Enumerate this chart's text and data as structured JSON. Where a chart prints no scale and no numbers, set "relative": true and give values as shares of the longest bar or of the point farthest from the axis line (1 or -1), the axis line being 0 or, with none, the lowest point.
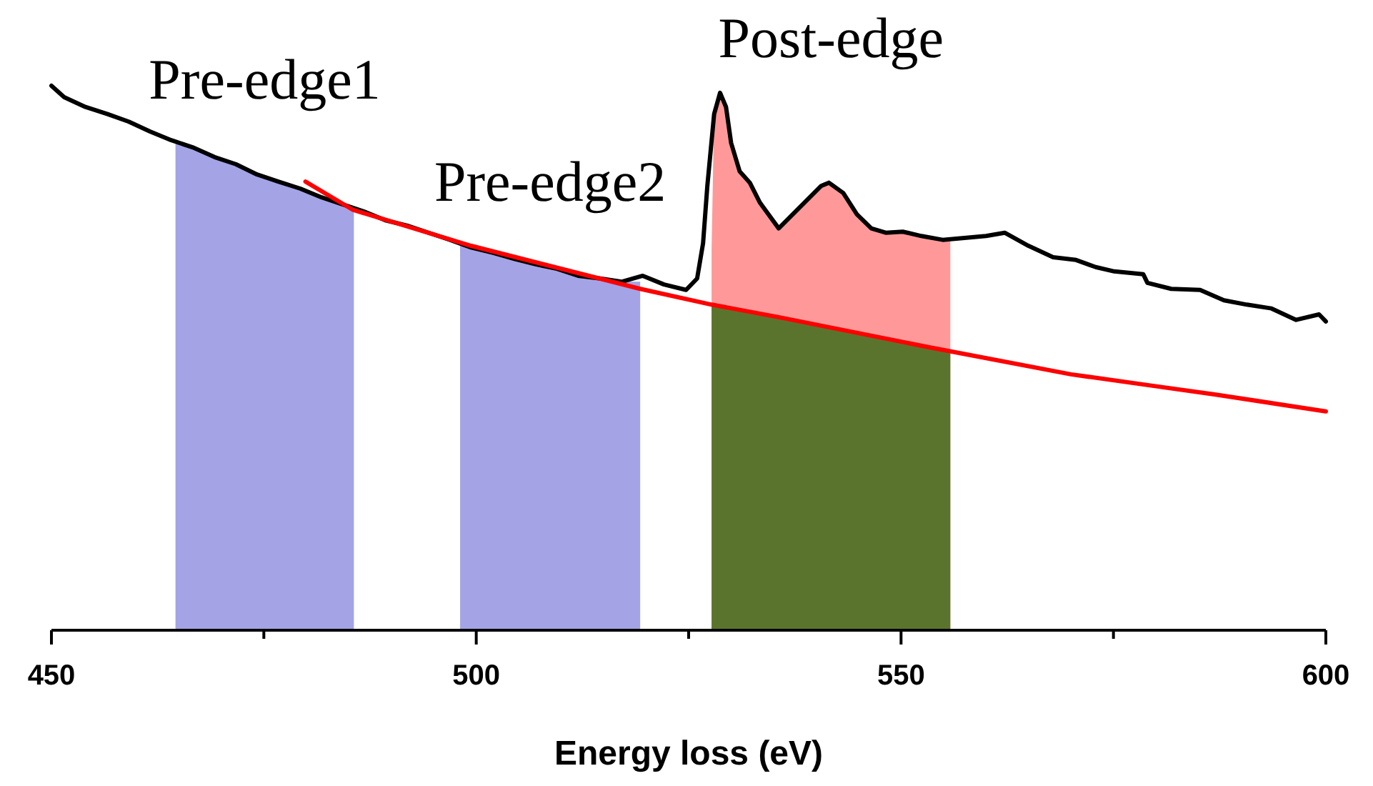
{
  "chart_data": {
    "type": "line",
    "relative": true,
    "xlabel": "Energy loss (eV)",
    "xlim": [
      450,
      600
    ],
    "xticks": [
      450,
      {
        "value": 475,
        "label": null
      },
      500,
      {
        "value": 525,
        "label": null
      },
      550,
      {
        "value": 575,
        "label": null
      },
      600
    ],
    "grid": false,
    "marker": "none",
    "line_style": "solid",
    "series": [
      {
        "type": "area",
        "name": "Pre-edge1",
        "color": "#a3a3e6",
        "x": [
          464.6,
          466.6,
          469.2,
          471.7,
          474.2,
          476.7,
          479.3,
          481.8,
          484.3,
          485.6
        ],
        "values": [
          0.897,
          0.887,
          0.869,
          0.856,
          0.837,
          0.824,
          0.811,
          0.795,
          0.782,
          0.775
        ]
      },
      {
        "type": "area",
        "name": "Pre-edge2",
        "color": "#a3a3e6",
        "x": [
          498.1,
          499.4,
          502,
          504.5,
          507,
          509.5,
          512,
          514.6,
          517.1,
          519.3
        ],
        "values": [
          0.71,
          0.703,
          0.693,
          0.682,
          0.672,
          0.664,
          0.651,
          0.646,
          0.64,
          0.64
        ]
      },
      {
        "type": "area",
        "name": "Post-edge",
        "color": "#ff9999",
        "x": [
          527.7,
          528,
          528.7,
          529.4,
          530,
          531,
          532.2,
          533.4,
          535.6,
          538.1,
          540.6,
          541.5,
          543.2,
          544.8,
          546.5,
          548.2,
          550.2,
          552.4,
          554.9,
          555.8
        ],
        "values": [
          0.7,
          0.948,
          0.987,
          0.961,
          0.895,
          0.843,
          0.822,
          0.785,
          0.738,
          0.777,
          0.816,
          0.822,
          0.803,
          0.764,
          0.738,
          0.73,
          0.732,
          0.724,
          0.717,
          0.717
        ]
      },
      {
        "type": "area",
        "color": "#5b742d",
        "x": [
          527.7,
          535.6,
          553.2,
          555.8
        ],
        "values": [
          0.598,
          0.575,
          0.52,
          0.513
        ]
      },
      {
        "color": "#000000",
        "x": [
          450,
          451.5,
          454,
          456.6,
          459.1,
          461.6,
          464.1,
          466.6,
          469.2,
          471.7,
          474.2,
          476.7,
          479.3,
          481.8,
          484.3,
          486.8,
          489.3,
          491.9,
          494.4,
          496.9,
          499.4,
          502,
          504.5,
          507,
          509.5,
          512,
          514.6,
          517.1,
          519.6,
          522.1,
          524.7,
          526,
          526.7,
          527.2,
          528,
          528.7,
          529.4,
          530,
          531,
          532.2,
          533.4,
          535.6,
          538.1,
          540.6,
          541.5,
          543.2,
          544.8,
          546.5,
          548.2,
          550.2,
          552.4,
          554.9,
          560,
          562.2,
          565,
          567.9,
          570.6,
          572.9,
          575.1,
          578.5,
          579,
          581.8,
          585.2,
          588,
          590.7,
          593.6,
          596.5,
          599.2,
          600
        ],
        "values": [
          1.0,
          0.979,
          0.961,
          0.948,
          0.934,
          0.916,
          0.9,
          0.887,
          0.869,
          0.856,
          0.837,
          0.824,
          0.811,
          0.795,
          0.782,
          0.769,
          0.753,
          0.743,
          0.73,
          0.717,
          0.703,
          0.693,
          0.682,
          0.672,
          0.664,
          0.651,
          0.646,
          0.64,
          0.651,
          0.635,
          0.625,
          0.646,
          0.711,
          0.816,
          0.948,
          0.987,
          0.961,
          0.895,
          0.843,
          0.822,
          0.785,
          0.738,
          0.777,
          0.816,
          0.822,
          0.803,
          0.764,
          0.738,
          0.73,
          0.732,
          0.724,
          0.717,
          0.724,
          0.73,
          0.706,
          0.685,
          0.68,
          0.667,
          0.659,
          0.654,
          0.638,
          0.627,
          0.625,
          0.606,
          0.598,
          0.591,
          0.57,
          0.58,
          0.567
        ]
      },
      {
        "color": "#ff0000",
        "x": [
          479.9,
          485.5,
          499.4,
          519.3,
          527.7,
          535.6,
          553.2,
          570,
          579.6,
          586.9,
          600
        ],
        "values": [
          0.824,
          0.772,
          0.706,
          0.627,
          0.598,
          0.575,
          0.52,
          0.47,
          0.449,
          0.433,
          0.402
        ]
      }
    ]
  }
}
